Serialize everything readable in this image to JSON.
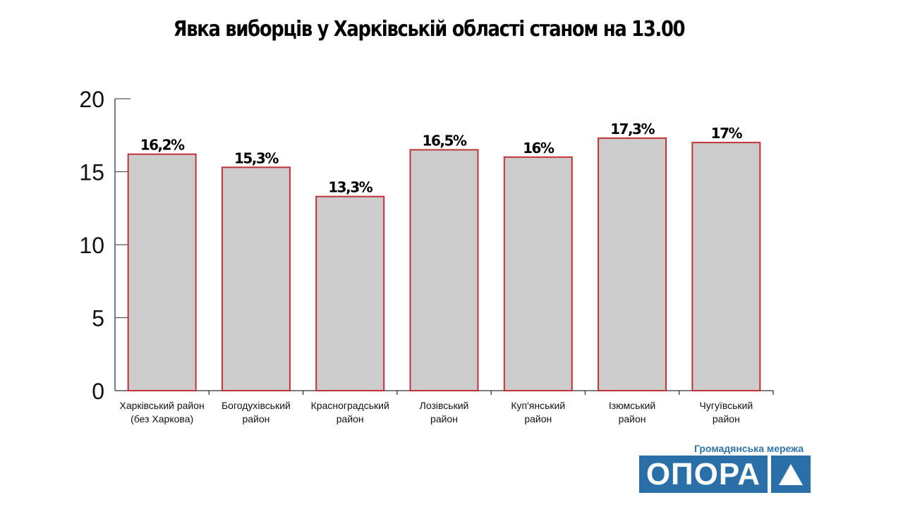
{
  "chart_data": {
    "type": "bar",
    "title": "Явка виборців у Харківській області станом на 13.00",
    "categories": [
      [
        "Харківський район",
        "(без Харкова)"
      ],
      [
        "Богодухівський",
        "район"
      ],
      [
        "Красноградський",
        "район"
      ],
      [
        "Лозівський",
        "район"
      ],
      [
        "Куп'янський",
        "район"
      ],
      [
        "Ізюмський",
        "район"
      ],
      [
        "Чугуївський",
        "район"
      ]
    ],
    "values": [
      16.2,
      15.3,
      13.3,
      16.5,
      16,
      17.3,
      17
    ],
    "data_labels": [
      "16,2%",
      "15,3%",
      "13,3%",
      "16,5%",
      "16%",
      "17,3%",
      "17%"
    ],
    "ylim": [
      0,
      20
    ],
    "yticks": [
      "0",
      "5",
      "10",
      "15",
      "20"
    ],
    "grid": false,
    "xlabel": "",
    "ylabel": "",
    "colors": {
      "bar_fill": "#cccccc",
      "bar_stroke": "#c0313a"
    }
  },
  "logo": {
    "subtitle": "Громадянська мережа",
    "name": "ОПОРА",
    "color": "#2a6fa8"
  }
}
